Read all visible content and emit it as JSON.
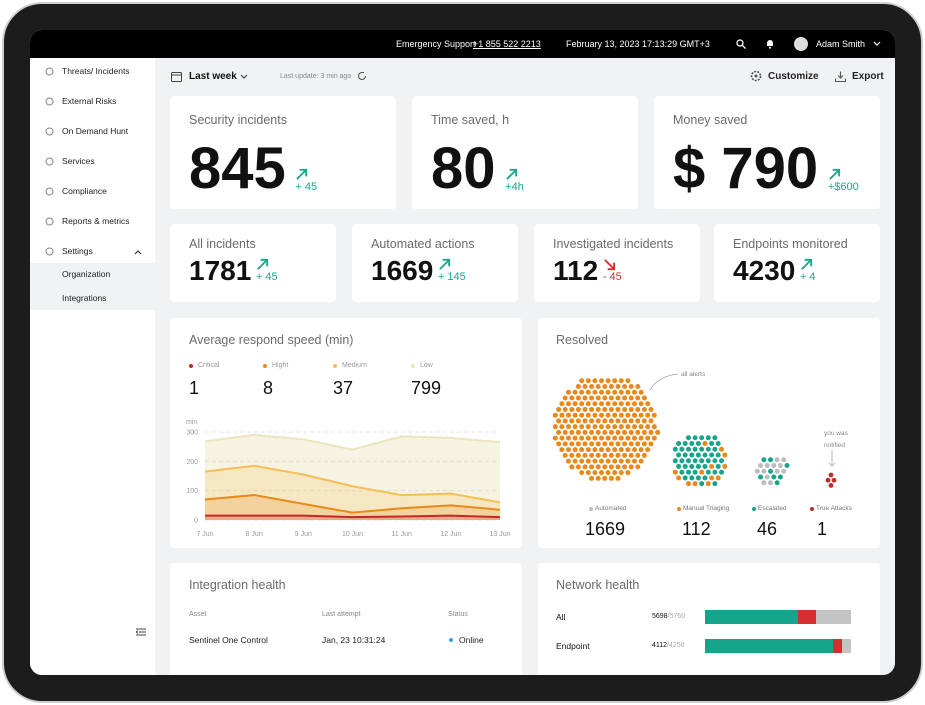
{
  "top_bar": {
    "support_label": "Emergency Support",
    "phone": "+1 855 522 2213",
    "datetime": "February 13, 2023 17:13:29 GMT+3",
    "user": "Adam Smith"
  },
  "sidebar": {
    "items": [
      "Threats/ Incidents",
      "External Risks",
      "On Demand Hunt",
      "Services",
      "Compliance",
      "Reports & metrics",
      "Settings"
    ],
    "subitems": [
      "Organization",
      "Integrations"
    ]
  },
  "toolbar": {
    "period": "Last week",
    "last_update": "Last update: 3 min ago",
    "customize": "Customize",
    "export": "Export"
  },
  "kpi_large": [
    {
      "title": "Security incidents",
      "value": 845,
      "change": "+ 45",
      "trend": "up"
    },
    {
      "title": "Time saved, h",
      "value": 80,
      "change": "+4h",
      "trend": "up"
    },
    {
      "title": "Money saved",
      "value": "$ 790",
      "change": "+$600",
      "trend": "up"
    }
  ],
  "kpi_small": [
    {
      "title": "All incidents",
      "value": 1781,
      "change": "+ 45",
      "trend": "up"
    },
    {
      "title": "Automated actions",
      "value": 1669,
      "change": "+ 145",
      "trend": "up"
    },
    {
      "title": "Investigated incidents",
      "value": 112,
      "change": "- 45",
      "trend": "down"
    },
    {
      "title": "Endpoints monitored",
      "value": 4230,
      "change": "+ 4",
      "trend": "up"
    }
  ],
  "respond_chart": {
    "type": "line",
    "title": "Average respond speed (min)",
    "y_label": "min",
    "categories": [
      "7 Jun",
      "8 Jun",
      "9 Jun",
      "10 Jun",
      "11 Jun",
      "12 Jun",
      "13 Jun"
    ],
    "ylim": [
      0,
      300
    ],
    "yticks": [
      0,
      100,
      200,
      300
    ],
    "grid": true,
    "series": [
      {
        "name": "Low",
        "color": "#ece4bf",
        "total": 799,
        "values": [
          268,
          290,
          275,
          240,
          285,
          280,
          265
        ]
      },
      {
        "name": "Medium",
        "color": "#f5bf55",
        "total": 37,
        "values": [
          165,
          185,
          155,
          115,
          85,
          90,
          60
        ]
      },
      {
        "name": "Hight",
        "color": "#e8891a",
        "total": 8,
        "values": [
          70,
          85,
          55,
          25,
          40,
          50,
          35
        ]
      },
      {
        "name": "Critical",
        "color": "#c62828",
        "total": 1,
        "values": [
          15,
          15,
          15,
          10,
          12,
          15,
          10
        ]
      }
    ]
  },
  "resolved": {
    "title": "Resolved",
    "all_alerts": "all alerts",
    "notified": "you was notified",
    "groups": [
      {
        "name": "Automated",
        "value": 1669,
        "color": "#bdbdbd"
      },
      {
        "name": "Manual Triaging",
        "value": 112,
        "color": "#e8891a"
      },
      {
        "name": "Escalated",
        "value": 46,
        "color": "#16a58b"
      },
      {
        "name": "True Attacks",
        "value": 1,
        "color": "#c62828"
      }
    ]
  },
  "integration_health": {
    "title": "Integration health",
    "columns": [
      "Asset",
      "Last attempt",
      "Status"
    ],
    "rows": [
      [
        "Sentinel One Control",
        "Jan, 23 10:31:24",
        "Online"
      ]
    ]
  },
  "network_health": {
    "title": "Network health",
    "segment_colors": [
      "#16a58b",
      "#d32f2f",
      "#c4c4c4"
    ],
    "rows": [
      {
        "name": "All",
        "count": "5698",
        "total": "/5760",
        "segments": [
          64,
          12,
          24
        ]
      },
      {
        "name": "Endpoint",
        "count": "4112",
        "total": "/4250",
        "segments": [
          88,
          6,
          6
        ]
      }
    ]
  }
}
